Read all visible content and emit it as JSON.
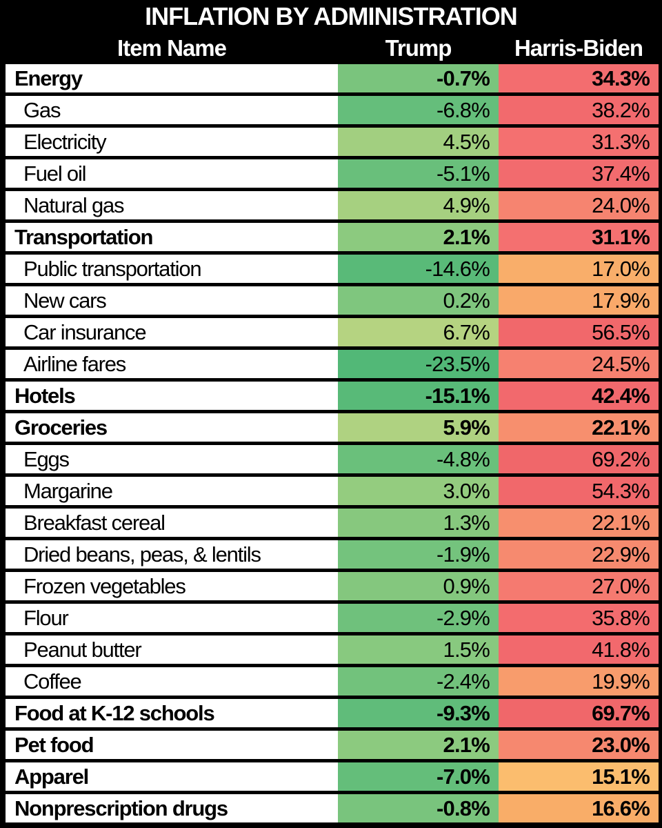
{
  "title": "INFLATION BY ADMINISTRATION",
  "columns": {
    "item": "Item Name",
    "trump": "Trump",
    "harris": "Harris-Biden"
  },
  "colors": {
    "background": "#000000",
    "header_text": "#ffffff",
    "item_cell_bg": "#ffffff",
    "row_text": "#000000",
    "green_scale_min": "#52b877",
    "green_scale_max": "#b5d381",
    "red_scale_min": "#fbbd6e",
    "red_scale_max": "#f0676a"
  },
  "rows": [
    {
      "name": "Energy",
      "bold": true,
      "trump": "-0.7%",
      "harris": "34.3%",
      "trump_color": "#7ac47d",
      "harris_color": "#f36d6f"
    },
    {
      "name": "Gas",
      "bold": false,
      "trump": "-6.8%",
      "harris": "38.2%",
      "trump_color": "#65be7b",
      "harris_color": "#f26a6d"
    },
    {
      "name": "Electricity",
      "bold": false,
      "trump": "4.5%",
      "harris": "31.3%",
      "trump_color": "#a2cf80",
      "harris_color": "#f47070"
    },
    {
      "name": "Fuel oil",
      "bold": false,
      "trump": "-5.1%",
      "harris": "37.4%",
      "trump_color": "#69bf7b",
      "harris_color": "#f26b6e"
    },
    {
      "name": "Natural gas",
      "bold": false,
      "trump": "4.9%",
      "harris": "24.0%",
      "trump_color": "#a6d080",
      "harris_color": "#f68470"
    },
    {
      "name": "Transportation",
      "bold": true,
      "trump": "2.1%",
      "harris": "31.1%",
      "trump_color": "#8cca7f",
      "harris_color": "#f47070"
    },
    {
      "name": "Public transportation",
      "bold": false,
      "trump": "-14.6%",
      "harris": "17.0%",
      "trump_color": "#59ba78",
      "harris_color": "#f9ae6a"
    },
    {
      "name": "New cars",
      "bold": false,
      "trump": "0.2%",
      "harris": "17.9%",
      "trump_color": "#7fc67e",
      "harris_color": "#f9a96a"
    },
    {
      "name": "Car insurance",
      "bold": false,
      "trump": "6.7%",
      "harris": "56.5%",
      "trump_color": "#b5d381",
      "harris_color": "#f1686b"
    },
    {
      "name": "Airline fares",
      "bold": false,
      "trump": "-23.5%",
      "harris": "24.5%",
      "trump_color": "#52b877",
      "harris_color": "#f68170"
    },
    {
      "name": "Hotels",
      "bold": true,
      "trump": "-15.1%",
      "harris": "42.4%",
      "trump_color": "#58ba78",
      "harris_color": "#f2696d"
    },
    {
      "name": "Groceries",
      "bold": true,
      "trump": "5.9%",
      "harris": "22.1%",
      "trump_color": "#afd281",
      "harris_color": "#f78f6e"
    },
    {
      "name": "Eggs",
      "bold": false,
      "trump": "-4.8%",
      "harris": "69.2%",
      "trump_color": "#6ac07b",
      "harris_color": "#f0676a"
    },
    {
      "name": "Margarine",
      "bold": false,
      "trump": "3.0%",
      "harris": "54.3%",
      "trump_color": "#94cc7f",
      "harris_color": "#f1686b"
    },
    {
      "name": "Breakfast cereal",
      "bold": false,
      "trump": "1.3%",
      "harris": "22.1%",
      "trump_color": "#87c87e",
      "harris_color": "#f78f6e"
    },
    {
      "name": "Dried beans, peas, & lentils",
      "bold": false,
      "trump": "-1.9%",
      "harris": "22.9%",
      "trump_color": "#74c37d",
      "harris_color": "#f68a6f"
    },
    {
      "name": "Frozen vegetables",
      "bold": false,
      "trump": "0.9%",
      "harris": "27.0%",
      "trump_color": "#84c77e",
      "harris_color": "#f57a70"
    },
    {
      "name": "Flour",
      "bold": false,
      "trump": "-2.9%",
      "harris": "35.8%",
      "trump_color": "#6fc17c",
      "harris_color": "#f36c6e"
    },
    {
      "name": "Peanut butter",
      "bold": false,
      "trump": "1.5%",
      "harris": "41.8%",
      "trump_color": "#88c97f",
      "harris_color": "#f2696d"
    },
    {
      "name": "Coffee",
      "bold": false,
      "trump": "-2.4%",
      "harris": "19.9%",
      "trump_color": "#72c27c",
      "harris_color": "#f89c6c"
    },
    {
      "name": "Food at K-12 schools",
      "bold": true,
      "trump": "-9.3%",
      "harris": "69.7%",
      "trump_color": "#60bc7a",
      "harris_color": "#f0676a"
    },
    {
      "name": "Pet food",
      "bold": true,
      "trump": "2.1%",
      "harris": "23.0%",
      "trump_color": "#8cca7f",
      "harris_color": "#f6886f"
    },
    {
      "name": "Apparel",
      "bold": true,
      "trump": "-7.0%",
      "harris": "15.1%",
      "trump_color": "#64be7a",
      "harris_color": "#fbbd6e"
    },
    {
      "name": "Nonprescription drugs",
      "bold": true,
      "trump": "-0.8%",
      "harris": "16.6%",
      "trump_color": "#79c47d",
      "harris_color": "#f9ad68"
    }
  ],
  "chart_data": {
    "type": "table",
    "title": "INFLATION BY ADMINISTRATION",
    "columns": [
      "Item Name",
      "Trump",
      "Harris-Biden"
    ],
    "rows": [
      [
        "Energy",
        -0.7,
        34.3
      ],
      [
        "Gas",
        -6.8,
        38.2
      ],
      [
        "Electricity",
        4.5,
        31.3
      ],
      [
        "Fuel oil",
        -5.1,
        37.4
      ],
      [
        "Natural gas",
        4.9,
        24.0
      ],
      [
        "Transportation",
        2.1,
        31.1
      ],
      [
        "Public transportation",
        -14.6,
        17.0
      ],
      [
        "New cars",
        0.2,
        17.9
      ],
      [
        "Car insurance",
        6.7,
        56.5
      ],
      [
        "Airline fares",
        -23.5,
        24.5
      ],
      [
        "Hotels",
        -15.1,
        42.4
      ],
      [
        "Groceries",
        5.9,
        22.1
      ],
      [
        "Eggs",
        -4.8,
        69.2
      ],
      [
        "Margarine",
        3.0,
        54.3
      ],
      [
        "Breakfast cereal",
        1.3,
        22.1
      ],
      [
        "Dried beans, peas, & lentils",
        -1.9,
        22.9
      ],
      [
        "Frozen vegetables",
        0.9,
        27.0
      ],
      [
        "Flour",
        -2.9,
        35.8
      ],
      [
        "Peanut butter",
        1.5,
        41.8
      ],
      [
        "Coffee",
        -2.4,
        19.9
      ],
      [
        "Food at K-12 schools",
        -9.3,
        69.7
      ],
      [
        "Pet food",
        2.1,
        23.0
      ],
      [
        "Apparel",
        -7.0,
        15.1
      ],
      [
        "Nonprescription drugs",
        -0.8,
        16.6
      ]
    ],
    "legend_note": "cell colors encode value on green-yellow-red scale (green = low/negative inflation, red = high inflation)"
  }
}
